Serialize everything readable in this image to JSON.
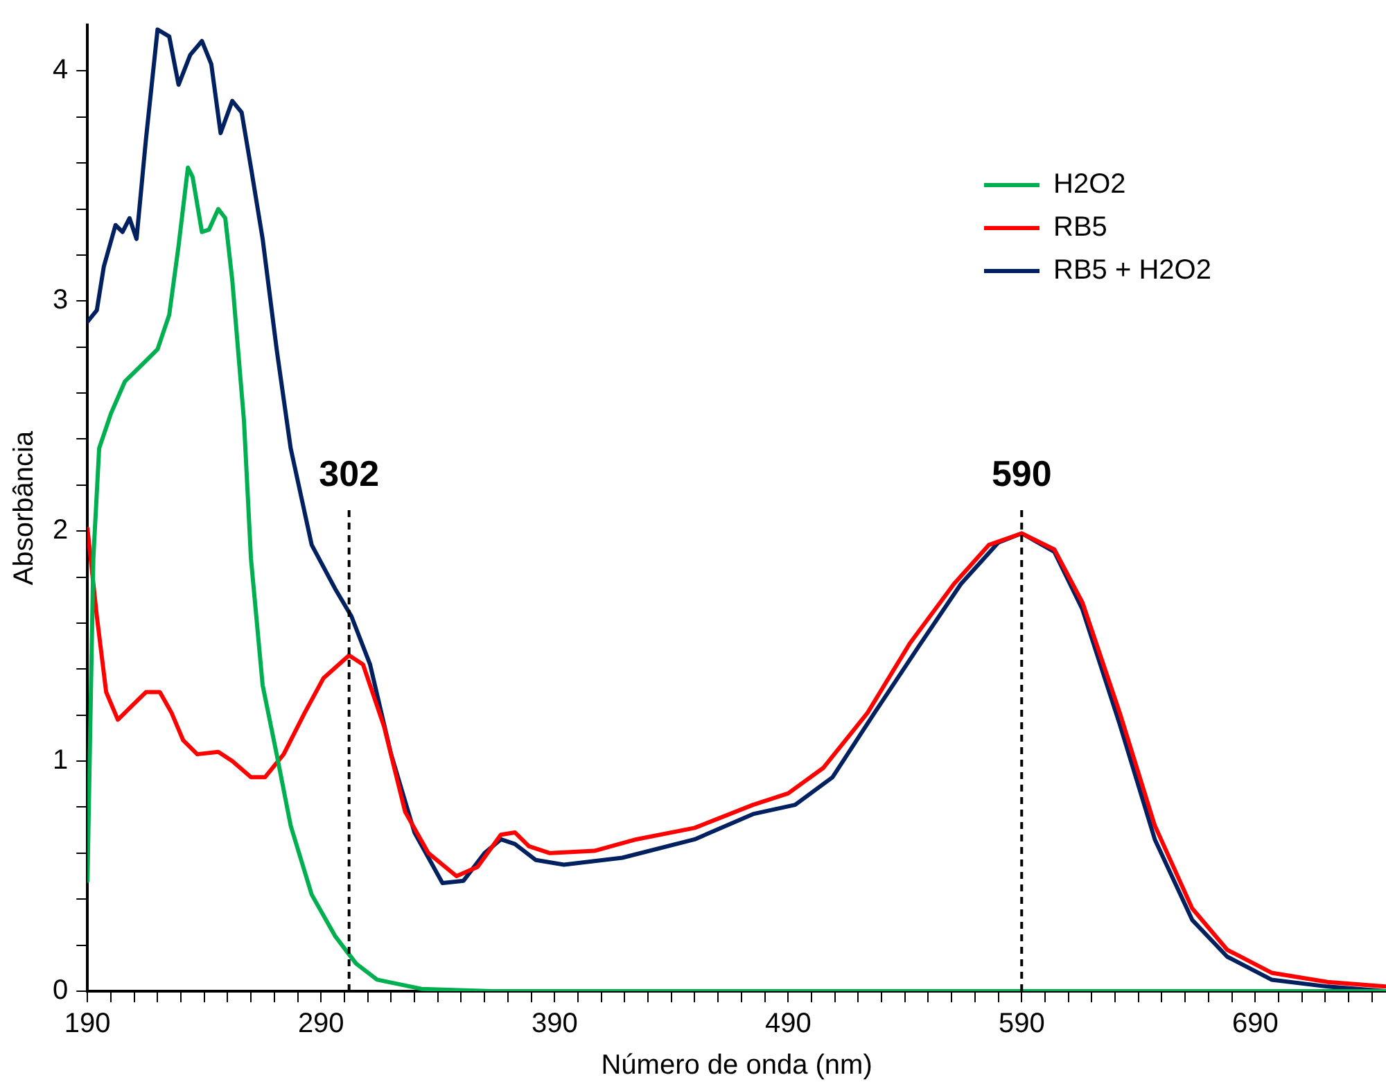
{
  "chart_data": {
    "type": "line",
    "xlabel": "Número de onda (nm)",
    "ylabel": "Absorbância",
    "xlim": [
      190,
      746
    ],
    "xticks": [
      190,
      {
        "value": 200,
        "label": null
      },
      {
        "value": 210,
        "label": null
      },
      {
        "value": 220,
        "label": null
      },
      {
        "value": 230,
        "label": null
      },
      {
        "value": 240,
        "label": null
      },
      {
        "value": 250,
        "label": null
      },
      {
        "value": 260,
        "label": null
      },
      {
        "value": 270,
        "label": null
      },
      {
        "value": 280,
        "label": null
      },
      290,
      {
        "value": 300,
        "label": null
      },
      {
        "value": 310,
        "label": null
      },
      {
        "value": 320,
        "label": null
      },
      {
        "value": 330,
        "label": null
      },
      {
        "value": 340,
        "label": null
      },
      {
        "value": 350,
        "label": null
      },
      {
        "value": 360,
        "label": null
      },
      {
        "value": 370,
        "label": null
      },
      {
        "value": 380,
        "label": null
      },
      390,
      {
        "value": 400,
        "label": null
      },
      {
        "value": 410,
        "label": null
      },
      {
        "value": 420,
        "label": null
      },
      {
        "value": 430,
        "label": null
      },
      {
        "value": 440,
        "label": null
      },
      {
        "value": 450,
        "label": null
      },
      {
        "value": 460,
        "label": null
      },
      {
        "value": 470,
        "label": null
      },
      {
        "value": 480,
        "label": null
      },
      490,
      {
        "value": 500,
        "label": null
      },
      {
        "value": 510,
        "label": null
      },
      {
        "value": 520,
        "label": null
      },
      {
        "value": 530,
        "label": null
      },
      {
        "value": 540,
        "label": null
      },
      {
        "value": 550,
        "label": null
      },
      {
        "value": 560,
        "label": null
      },
      {
        "value": 570,
        "label": null
      },
      {
        "value": 580,
        "label": null
      },
      590,
      {
        "value": 600,
        "label": null
      },
      {
        "value": 610,
        "label": null
      },
      {
        "value": 620,
        "label": null
      },
      {
        "value": 630,
        "label": null
      },
      {
        "value": 640,
        "label": null
      },
      {
        "value": 650,
        "label": null
      },
      {
        "value": 660,
        "label": null
      },
      {
        "value": 670,
        "label": null
      },
      {
        "value": 680,
        "label": null
      },
      690,
      {
        "value": 700,
        "label": null
      },
      {
        "value": 710,
        "label": null
      },
      {
        "value": 720,
        "label": null
      },
      {
        "value": 730,
        "label": null
      },
      {
        "value": 740,
        "label": null
      }
    ],
    "ylim": [
      0,
      4.2
    ],
    "yticks": [
      0,
      {
        "value": 0.2,
        "label": null
      },
      {
        "value": 0.4,
        "label": null
      },
      {
        "value": 0.6,
        "label": null
      },
      {
        "value": 0.8,
        "label": null
      },
      1,
      {
        "value": 1.2,
        "label": null
      },
      {
        "value": 1.4,
        "label": null
      },
      {
        "value": 1.6,
        "label": null
      },
      {
        "value": 1.8,
        "label": null
      },
      2,
      {
        "value": 2.2,
        "label": null
      },
      {
        "value": 2.4,
        "label": null
      },
      {
        "value": 2.6,
        "label": null
      },
      {
        "value": 2.8,
        "label": null
      },
      3,
      {
        "value": 3.2,
        "label": null
      },
      {
        "value": 3.4,
        "label": null
      },
      {
        "value": 3.6,
        "label": null
      },
      {
        "value": 3.8,
        "label": null
      },
      4
    ],
    "grid": false,
    "legend": "top right",
    "marker": "none",
    "line_style": "solid",
    "ref_lines": [
      {
        "axis": "x",
        "value": 302,
        "label": "302",
        "color": "#000000",
        "line_style": "dashed"
      },
      {
        "axis": "x",
        "value": 590,
        "label": "590",
        "color": "#000000",
        "line_style": "dashed"
      }
    ],
    "series": [
      {
        "name": "H2O2",
        "color": "#00b050",
        "x": [
          190,
          192.5,
          195,
          200,
          206,
          212,
          220,
          225,
          229,
          233,
          235,
          239,
          242,
          246,
          249,
          252,
          257,
          260,
          265,
          271,
          277,
          286,
          296,
          305,
          314,
          333,
          363,
          746
        ],
        "values": [
          0.48,
          1.88,
          2.36,
          2.51,
          2.65,
          2.71,
          2.79,
          2.94,
          3.24,
          3.58,
          3.54,
          3.3,
          3.31,
          3.4,
          3.36,
          3.09,
          2.48,
          1.88,
          1.33,
          1.03,
          0.72,
          0.42,
          0.24,
          0.12,
          0.05,
          0.01,
          0,
          0
        ]
      },
      {
        "name": "RB5",
        "color": "#ff0000",
        "x": [
          190,
          194,
          198,
          203,
          209,
          215,
          221,
          226,
          231,
          237,
          246,
          252,
          260,
          266,
          274,
          283,
          291,
          302,
          308,
          317,
          326,
          336,
          348,
          357,
          367,
          373,
          379,
          388,
          407,
          425,
          450,
          475,
          490,
          505,
          524,
          542,
          561,
          576,
          590,
          604,
          616,
          632,
          647,
          663,
          678,
          697,
          721,
          746
        ],
        "values": [
          2.01,
          1.63,
          1.3,
          1.18,
          1.24,
          1.3,
          1.3,
          1.21,
          1.09,
          1.03,
          1.04,
          1,
          0.93,
          0.93,
          1.03,
          1.21,
          1.36,
          1.46,
          1.42,
          1.15,
          0.78,
          0.6,
          0.5,
          0.54,
          0.68,
          0.69,
          0.63,
          0.6,
          0.61,
          0.66,
          0.71,
          0.81,
          0.86,
          0.97,
          1.21,
          1.51,
          1.77,
          1.94,
          1.99,
          1.92,
          1.69,
          1.21,
          0.72,
          0.36,
          0.18,
          0.08,
          0.04,
          0.02
        ]
      },
      {
        "name": "RB5 + H2O2",
        "color": "#002060",
        "x": [
          190,
          194,
          197,
          202,
          205,
          208,
          211,
          215,
          220,
          225,
          229,
          234,
          239,
          243,
          247,
          252,
          256,
          260,
          265,
          271,
          277,
          286,
          296,
          303,
          311,
          320,
          330,
          342,
          351,
          360,
          367,
          373,
          382,
          394,
          419,
          450,
          475,
          493,
          509,
          527,
          546,
          564,
          580,
          590,
          604,
          616,
          632,
          647,
          663,
          678,
          697,
          721,
          746
        ],
        "values": [
          2.91,
          2.96,
          3.15,
          3.33,
          3.3,
          3.36,
          3.27,
          3.7,
          4.18,
          4.15,
          3.94,
          4.07,
          4.13,
          4.03,
          3.73,
          3.87,
          3.82,
          3.58,
          3.27,
          2.79,
          2.36,
          1.94,
          1.75,
          1.63,
          1.42,
          1.03,
          0.69,
          0.47,
          0.48,
          0.6,
          0.66,
          0.64,
          0.57,
          0.55,
          0.58,
          0.66,
          0.77,
          0.81,
          0.93,
          1.21,
          1.5,
          1.77,
          1.95,
          1.99,
          1.91,
          1.66,
          1.16,
          0.66,
          0.31,
          0.15,
          0.05,
          0.02,
          0
        ]
      }
    ]
  }
}
